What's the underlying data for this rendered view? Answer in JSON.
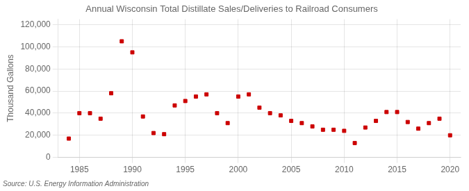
{
  "chart_data": {
    "type": "scatter",
    "title": "Annual Wisconsin Total Distillate Sales/Deliveries to Railroad Consumers",
    "ylabel": "Thousand Gallons",
    "annotations": [
      "Source: U.S. Energy Information Administration"
    ],
    "x": [
      1984,
      1985,
      1986,
      1987,
      1988,
      1989,
      1990,
      1991,
      1992,
      1993,
      1994,
      1995,
      1996,
      1997,
      1998,
      1999,
      2000,
      2001,
      2002,
      2003,
      2004,
      2005,
      2006,
      2007,
      2008,
      2009,
      2010,
      2011,
      2012,
      2013,
      2014,
      2015,
      2016,
      2017,
      2018,
      2019,
      2020
    ],
    "values": [
      17000,
      40000,
      40000,
      35000,
      58000,
      105000,
      95000,
      37000,
      22000,
      21000,
      47000,
      51000,
      55000,
      57000,
      40000,
      31000,
      55000,
      57000,
      45000,
      40000,
      38000,
      33000,
      31000,
      28000,
      25000,
      25000,
      24000,
      13000,
      27000,
      33000,
      41000,
      41000,
      32000,
      26000,
      31000,
      35000,
      20000
    ],
    "color": "#cc0000",
    "marker": "square",
    "xlim": [
      1983,
      2021
    ],
    "xticks": [
      1985,
      1990,
      1995,
      2000,
      2005,
      2010,
      2015,
      2020
    ],
    "ylim": [
      0,
      125000
    ],
    "yticks": [
      0,
      {
        "value": 20000,
        "label": "20,000"
      },
      {
        "value": 40000,
        "label": "40,000"
      },
      {
        "value": 60000,
        "label": "60,000"
      },
      {
        "value": 80000,
        "label": "80,000"
      },
      {
        "value": 100000,
        "label": "100,000"
      },
      {
        "value": 120000,
        "label": "120,000"
      }
    ],
    "grid": true
  }
}
